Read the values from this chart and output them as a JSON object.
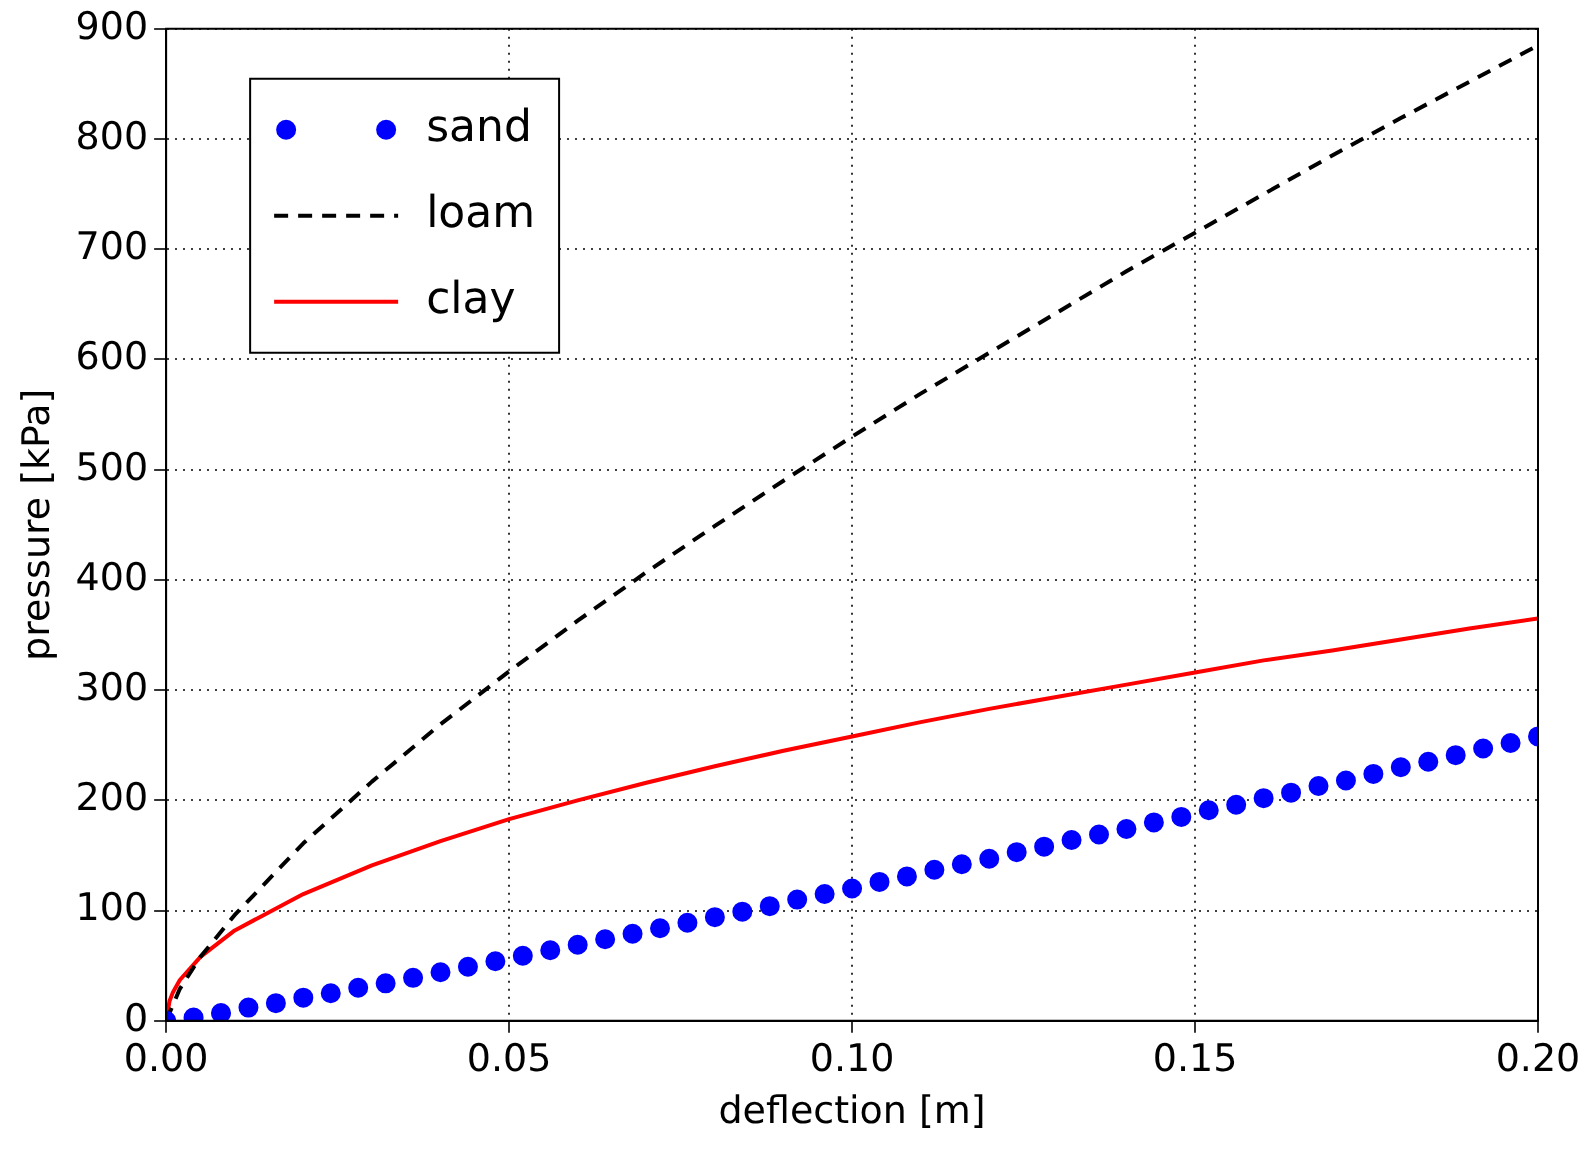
{
  "chart_data": {
    "type": "line",
    "xlabel": "deflection [m]",
    "ylabel": "pressure [kPa]",
    "xlim": [
      0,
      0.2
    ],
    "xticks": [
      {
        "value": 0,
        "label": "0.00"
      },
      {
        "value": 0.05,
        "label": "0.05"
      },
      {
        "value": 0.1,
        "label": "0.10"
      },
      {
        "value": 0.15,
        "label": "0.15"
      },
      {
        "value": 0.2,
        "label": "0.20"
      }
    ],
    "ylim": [
      0,
      900
    ],
    "yticks": [
      0,
      100,
      200,
      300,
      400,
      500,
      600,
      700,
      800,
      900
    ],
    "grid": true,
    "legend": "top left",
    "series": [
      {
        "name": "sand",
        "type": "scatter",
        "marker": "circle",
        "color": "#0000ff",
        "x": [
          0,
          0.004,
          0.008,
          0.012,
          0.016,
          0.02,
          0.024,
          0.028,
          0.032,
          0.036,
          0.04,
          0.044,
          0.048,
          0.052,
          0.056,
          0.06,
          0.064,
          0.068,
          0.072,
          0.076,
          0.08,
          0.084,
          0.088,
          0.092,
          0.096,
          0.1,
          0.104,
          0.108,
          0.112,
          0.116,
          0.12,
          0.124,
          0.128,
          0.132,
          0.136,
          0.14,
          0.144,
          0.148,
          0.152,
          0.156,
          0.16,
          0.164,
          0.168,
          0.172,
          0.176,
          0.18,
          0.184,
          0.188,
          0.192,
          0.196,
          0.2
        ],
        "values": [
          0,
          3,
          7,
          12,
          16,
          21,
          25,
          30,
          34,
          39,
          44,
          49,
          54,
          59,
          64,
          69,
          74,
          79,
          84,
          89,
          94,
          99,
          104,
          110,
          115,
          120,
          126,
          131,
          137,
          142,
          147,
          153,
          158,
          164,
          169,
          174,
          180,
          185,
          191,
          196,
          202,
          207,
          213,
          218,
          224,
          230,
          235,
          241,
          247,
          252,
          258
        ]
      },
      {
        "name": "loam",
        "type": "line",
        "line_style": "dashed",
        "color": "#000000",
        "x": [
          0,
          0.002,
          0.005,
          0.01,
          0.02,
          0.03,
          0.04,
          0.05,
          0.06,
          0.07,
          0.08,
          0.09,
          0.1,
          0.11,
          0.12,
          0.13,
          0.14,
          0.15,
          0.16,
          0.17,
          0.18,
          0.19,
          0.2
        ],
        "values": [
          0,
          29,
          58,
          96,
          161,
          217,
          269,
          317,
          363,
          407,
          449,
          490,
          530,
          569,
          606,
          643,
          680,
          715,
          750,
          785,
          819,
          852,
          885
        ]
      },
      {
        "name": "clay",
        "type": "line",
        "line_style": "solid",
        "color": "#ff0000",
        "x": [
          0,
          0.0005,
          0.001,
          0.002,
          0.005,
          0.01,
          0.02,
          0.03,
          0.04,
          0.05,
          0.06,
          0.07,
          0.08,
          0.09,
          0.1,
          0.11,
          0.12,
          0.13,
          0.14,
          0.15,
          0.16,
          0.17,
          0.18,
          0.19,
          0.2
        ],
        "values": [
          0,
          18,
          26,
          37,
          58,
          82,
          115,
          141,
          163,
          183,
          200,
          216,
          231,
          245,
          258,
          271,
          283,
          294,
          305,
          316,
          327,
          336,
          346,
          356,
          365
        ]
      }
    ]
  }
}
